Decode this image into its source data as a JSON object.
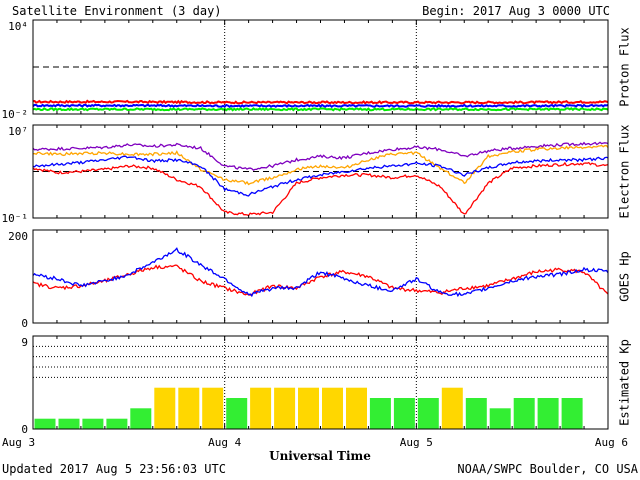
{
  "header": {
    "title": "Satellite Environment (3 day)",
    "begin": "Begin:  2017 Aug 3 0000 UTC"
  },
  "footer": {
    "updated": "Updated 2017 Aug  5 23:56:03 UTC",
    "credit": "NOAA/SWPC Boulder, CO USA"
  },
  "colors": {
    "red": "#ff0000",
    "blue": "#0000ff",
    "green": "#00ee00",
    "orange": "#ffa500",
    "purple": "#7f00bf",
    "yellow": "#ffd700",
    "kp_green": "#33ee33"
  },
  "chart_data": [
    {
      "type": "line",
      "ylabel": "Proton Flux",
      "scale": "log",
      "ylim": [
        0.01,
        10000
      ],
      "tick_labels": {
        "y_top": "10⁴",
        "y_bottom": "10⁻²"
      },
      "threshold": 10,
      "x": [
        0,
        12,
        24,
        36,
        48,
        60,
        72
      ],
      "series": [
        {
          "color": "red",
          "values": [
            0.06,
            0.06,
            0.055,
            0.055,
            0.055,
            0.055,
            0.06
          ]
        },
        {
          "color": "blue",
          "values": [
            0.035,
            0.035,
            0.033,
            0.033,
            0.033,
            0.033,
            0.034
          ]
        },
        {
          "color": "green",
          "values": [
            0.02,
            0.02,
            0.02,
            0.02,
            0.02,
            0.02,
            0.02
          ]
        }
      ]
    },
    {
      "type": "line",
      "ylabel": "Electron Flux",
      "scale": "log",
      "ylim": [
        0.1,
        10000000
      ],
      "tick_labels": {
        "y_top": "10⁷",
        "y_bottom": "10⁻¹"
      },
      "threshold": 1000,
      "x": [
        0,
        3,
        6,
        9,
        12,
        15,
        18,
        21,
        24,
        27,
        30,
        33,
        36,
        39,
        42,
        45,
        48,
        51,
        54,
        57,
        60,
        63,
        66,
        69,
        72
      ],
      "series": [
        {
          "color": "purple",
          "values": [
            80000,
            90000,
            100000,
            120000,
            200000,
            150000,
            200000,
            100000,
            3000,
            1500,
            3000,
            10000,
            20000,
            15000,
            40000,
            80000,
            120000,
            80000,
            20000,
            60000,
            100000,
            150000,
            200000,
            250000,
            250000
          ]
        },
        {
          "color": "orange",
          "values": [
            40000,
            30000,
            35000,
            40000,
            30000,
            30000,
            40000,
            1500,
            200,
            100,
            300,
            1500,
            3000,
            2000,
            10000,
            30000,
            40000,
            2000,
            100,
            20000,
            50000,
            80000,
            100000,
            120000,
            150000
          ]
        },
        {
          "color": "blue",
          "values": [
            3000,
            4000,
            6000,
            10000,
            20000,
            8000,
            10000,
            3000,
            30,
            10,
            50,
            200,
            500,
            1000,
            2000,
            3000,
            5000,
            3000,
            500,
            2000,
            6000,
            8000,
            10000,
            10000,
            15000
          ]
        },
        {
          "color": "red",
          "values": [
            2000,
            800,
            1000,
            1500,
            3000,
            2000,
            200,
            50,
            0.3,
            0.2,
            0.3,
            100,
            300,
            500,
            500,
            300,
            500,
            50,
            0.2,
            100,
            2000,
            3000,
            4000,
            5000,
            3000
          ]
        }
      ]
    },
    {
      "type": "line",
      "ylabel": "GOES Hp",
      "scale": "linear",
      "ylim": [
        0,
        200
      ],
      "tick_labels": {
        "y_top": "200",
        "y_bottom": "0"
      },
      "x": [
        0,
        3,
        6,
        9,
        12,
        15,
        18,
        21,
        24,
        27,
        30,
        33,
        36,
        39,
        42,
        45,
        48,
        51,
        54,
        57,
        60,
        63,
        66,
        69,
        72
      ],
      "series": [
        {
          "color": "red",
          "values": [
            85,
            75,
            80,
            90,
            105,
            120,
            122,
            90,
            75,
            60,
            80,
            75,
            100,
            110,
            100,
            75,
            70,
            65,
            75,
            80,
            95,
            110,
            115,
            110,
            60
          ]
        },
        {
          "color": "blue",
          "values": [
            105,
            95,
            80,
            90,
            105,
            130,
            158,
            125,
            95,
            60,
            75,
            75,
            110,
            95,
            80,
            70,
            95,
            65,
            60,
            75,
            90,
            100,
            105,
            115,
            110
          ]
        }
      ]
    },
    {
      "type": "bar",
      "ylabel": "Estimated Kp",
      "ylim": [
        0,
        9
      ],
      "tick_labels": {
        "y_top": "9",
        "y_bottom": "0"
      },
      "x_labels": [
        "Aug 3",
        "Aug 4",
        "Aug 5",
        "Aug 6"
      ],
      "xlabel": "Universal Time",
      "values": [
        1,
        1,
        1,
        1,
        2,
        4,
        4,
        4,
        3,
        4,
        4,
        4,
        4,
        4,
        3,
        3,
        3,
        4,
        3,
        2,
        3,
        3,
        3,
        0
      ]
    }
  ]
}
